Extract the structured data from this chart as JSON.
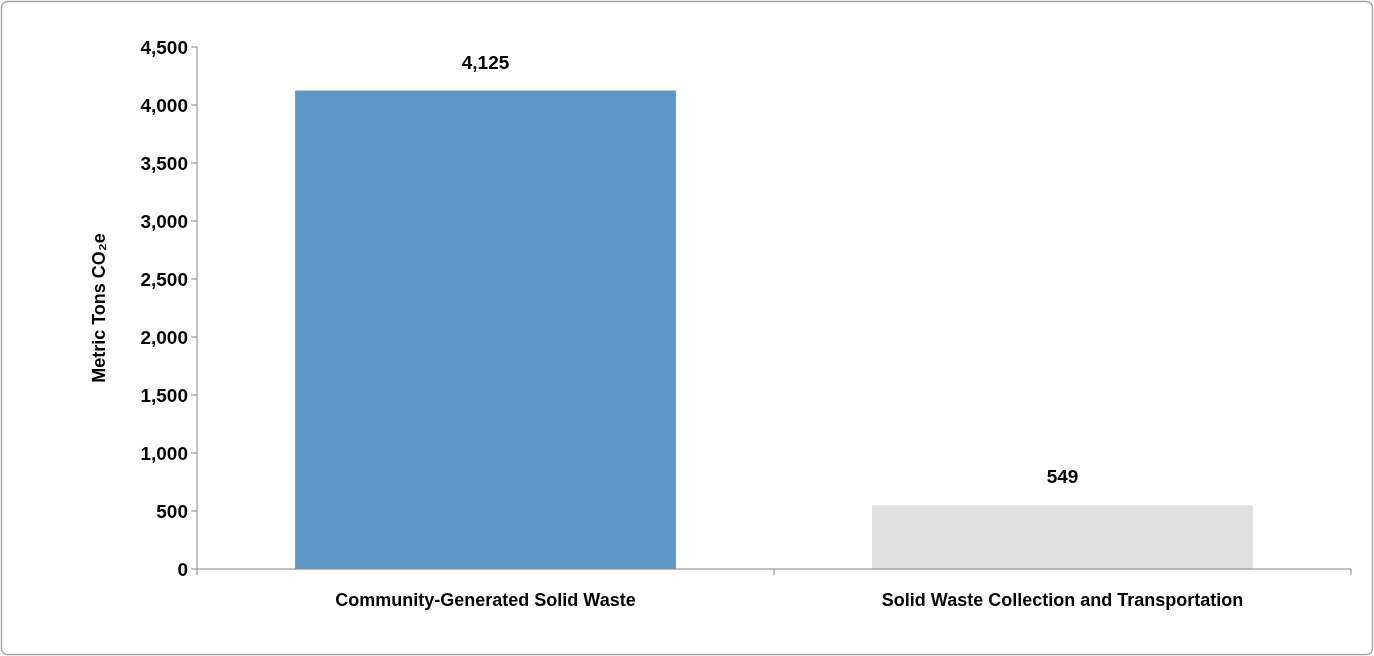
{
  "chart_data": {
    "type": "bar",
    "ylabel": "Metric Tons CO₂e",
    "categories": [
      "Community-Generated Solid Waste",
      "Solid Waste Collection and Transportation"
    ],
    "values": [
      4125,
      549
    ],
    "colors": [
      "#5f96c8",
      "#e0e0e0"
    ],
    "ylim": [
      0,
      4500
    ],
    "yticks": [
      {
        "value": 0,
        "label": "0"
      },
      {
        "value": 500,
        "label": "500"
      },
      {
        "value": 1000,
        "label": "1,000"
      },
      {
        "value": 1500,
        "label": "1,500"
      },
      {
        "value": 2000,
        "label": "2,000"
      },
      {
        "value": 2500,
        "label": "2,500"
      },
      {
        "value": 3000,
        "label": "3,000"
      },
      {
        "value": 3500,
        "label": "3,500"
      },
      {
        "value": 4000,
        "label": "4,000"
      },
      {
        "value": 4500,
        "label": "4,500"
      }
    ],
    "value_labels": [
      "4,125",
      "549"
    ],
    "grid": false
  }
}
